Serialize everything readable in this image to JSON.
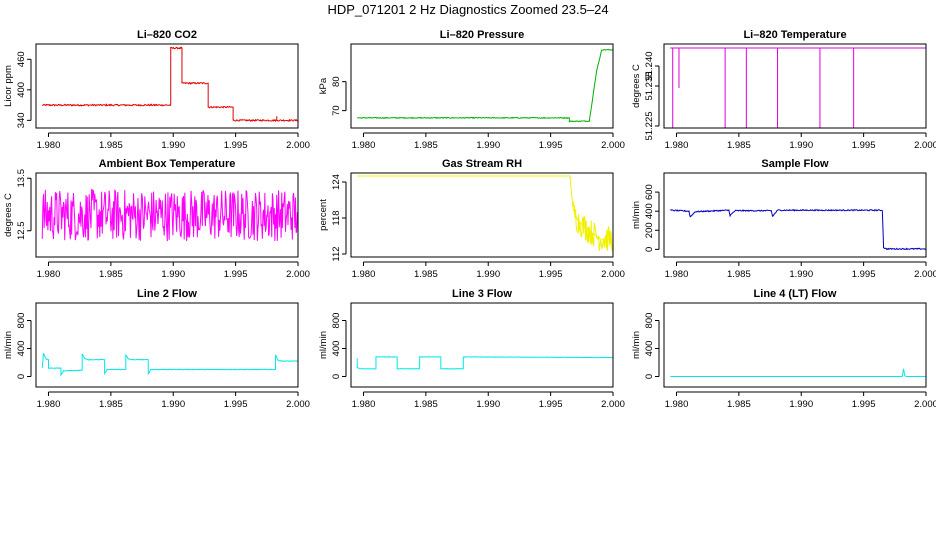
{
  "suptitle": "HDP_071201  2 Hz Diagnostics Zoomed 23.5–24",
  "chart_data": [
    {
      "type": "line",
      "title": "Li–820 CO2",
      "ylabel": "Licor ppm",
      "color": "#e00000",
      "xlim": [
        1.979,
        2.0
      ],
      "ylim": [
        325,
        490
      ],
      "xticks": [
        1.98,
        1.985,
        1.99,
        1.995,
        2.0
      ],
      "xtick_labels": [
        "1.980",
        "1.985",
        "1.990",
        "1.995",
        "2.000"
      ],
      "yticks": [
        340,
        400,
        460
      ],
      "ytick_labels": [
        "340",
        "400",
        "460"
      ],
      "series": [
        {
          "noise": 1.5,
          "x": [
            1.9795,
            1.9898,
            1.9898,
            1.9907,
            1.9907,
            1.9928,
            1.9928,
            1.9948,
            1.9948,
            1.9983,
            1.9983,
            1.9983,
            1.9983,
            2.0
          ],
          "y": [
            370,
            370,
            482,
            482,
            413,
            413,
            366,
            366,
            340,
            340,
            348,
            348,
            340,
            340
          ]
        }
      ]
    },
    {
      "type": "line",
      "title": "Li–820 Pressure",
      "ylabel": "kPa",
      "color": "#00b000",
      "xlim": [
        1.979,
        2.0
      ],
      "ylim": [
        64,
        93
      ],
      "xticks": [
        1.98,
        1.985,
        1.99,
        1.995,
        2.0
      ],
      "xtick_labels": [
        "1.980",
        "1.985",
        "1.990",
        "1.995",
        "2.000"
      ],
      "yticks": [
        70,
        80
      ],
      "ytick_labels": [
        "70",
        "80"
      ],
      "series": [
        {
          "noise": 0.15,
          "x": [
            1.9795,
            1.9965,
            1.9965,
            1.9981,
            1.9987,
            1.9991,
            2.0
          ],
          "y": [
            67.5,
            67.5,
            66.3,
            66.4,
            84,
            91,
            91
          ]
        }
      ]
    },
    {
      "type": "line",
      "title": "Li–820 Temperature",
      "ylabel": "degrees C",
      "color": "#e000e0",
      "xlim": [
        1.979,
        2.0
      ],
      "ylim": [
        51.2245,
        51.2455
      ],
      "xticks": [
        1.98,
        1.985,
        1.99,
        1.995,
        2.0
      ],
      "xtick_labels": [
        "1.980",
        "1.985",
        "1.990",
        "1.995",
        "2.000"
      ],
      "yticks": [
        51.225,
        51.235,
        51.24
      ],
      "ytick_labels": [
        "51.225",
        "51.235",
        "51.240"
      ],
      "series": [
        {
          "noise": 0,
          "x": [
            1.9795,
            1.9797,
            1.9797,
            1.9797,
            1.9797,
            1.9802,
            1.9802,
            1.9802,
            1.9802,
            1.9839,
            1.9839,
            1.9839,
            1.9839,
            1.9856,
            1.9856,
            1.9856,
            1.9856,
            1.9881,
            1.9881,
            1.9881,
            1.9881,
            1.9915,
            1.9915,
            1.9915,
            1.9915,
            1.9942,
            1.9942,
            1.9942,
            1.9942,
            2.0
          ],
          "y": [
            51.2445,
            51.2445,
            51.2245,
            51.2245,
            51.2445,
            51.2445,
            51.2345,
            51.2345,
            51.2445,
            51.2445,
            51.2245,
            51.2245,
            51.2445,
            51.2445,
            51.2245,
            51.2245,
            51.2445,
            51.2445,
            51.2245,
            51.2245,
            51.2445,
            51.2445,
            51.2245,
            51.2245,
            51.2445,
            51.2445,
            51.2245,
            51.2245,
            51.2445,
            51.2445
          ]
        }
      ]
    },
    {
      "type": "line",
      "title": "Ambient Box Temperature",
      "ylabel": "degrees C",
      "color": "#ff00ff",
      "xlim": [
        1.979,
        2.0
      ],
      "ylim": [
        12.0,
        13.6
      ],
      "xticks": [
        1.98,
        1.985,
        1.99,
        1.995,
        2.0
      ],
      "xtick_labels": [
        "1.980",
        "1.985",
        "1.990",
        "1.995",
        "2.000"
      ],
      "yticks": [
        12.5,
        13.5
      ],
      "ytick_labels": [
        "12.5",
        "13.5"
      ],
      "series": [
        {
          "noise": 0.5,
          "x": [
            1.9795,
            2.0
          ],
          "y": [
            12.8,
            12.8
          ]
        }
      ]
    },
    {
      "type": "line",
      "title": "Gas Stream RH",
      "ylabel": "percent",
      "color": "#f0f000",
      "xlim": [
        1.979,
        2.0
      ],
      "ylim": [
        111.5,
        125.5
      ],
      "xticks": [
        1.98,
        1.985,
        1.99,
        1.995,
        2.0
      ],
      "xtick_labels": [
        "1.980",
        "1.985",
        "1.990",
        "1.995",
        "2.000"
      ],
      "yticks": [
        112,
        118,
        124
      ],
      "ytick_labels": [
        "112",
        "118",
        "124"
      ],
      "series": [
        {
          "noise": 0,
          "x": [
            1.9795,
            1.99655,
            1.9968,
            1.9972,
            1.998,
            1.999,
            2.0
          ],
          "y": [
            125.0,
            125.0,
            119.5,
            117.5,
            116.0,
            114.5,
            114.5
          ]
        },
        {
          "noise": 2.2,
          "x": [
            1.9968,
            1.9972,
            1.998,
            1.999,
            2.0
          ],
          "y": [
            119.0,
            117.5,
            116.0,
            114.5,
            114.5
          ]
        }
      ]
    },
    {
      "type": "line",
      "title": "Sample Flow",
      "ylabel": "ml/min",
      "color": "#0000c0",
      "xlim": [
        1.979,
        2.0
      ],
      "ylim": [
        -80,
        800
      ],
      "xticks": [
        1.98,
        1.985,
        1.99,
        1.995,
        2.0
      ],
      "xtick_labels": [
        "1.980",
        "1.985",
        "1.990",
        "1.995",
        "2.000"
      ],
      "yticks": [
        0,
        200,
        400,
        600
      ],
      "ytick_labels": [
        "0",
        "200",
        "400",
        "600"
      ],
      "series": [
        {
          "noise": 6,
          "x": [
            1.9795,
            1.981,
            1.9811,
            1.9815,
            1.9842,
            1.9843,
            1.9847,
            1.9876,
            1.9877,
            1.9881,
            1.9965,
            1.9966,
            1.9968,
            2.0
          ],
          "y": [
            410,
            400,
            340,
            395,
            410,
            355,
            405,
            405,
            345,
            410,
            410,
            20,
            5,
            5
          ]
        }
      ]
    },
    {
      "type": "line",
      "title": "Line 2 Flow",
      "ylabel": "ml/min",
      "color": "#00e8e8",
      "xlim": [
        1.979,
        2.0
      ],
      "ylim": [
        -150,
        1050
      ],
      "xticks": [
        1.98,
        1.985,
        1.99,
        1.995,
        2.0
      ],
      "xtick_labels": [
        "1.980",
        "1.985",
        "1.990",
        "1.995",
        "2.000"
      ],
      "yticks": [
        0,
        400,
        800
      ],
      "ytick_labels": [
        "0",
        "400",
        "800"
      ],
      "series": [
        {
          "noise": 4,
          "x": [
            1.9795,
            1.9796,
            1.9798,
            1.98,
            1.98,
            1.981,
            1.981,
            1.9812,
            1.9827,
            1.9827,
            1.9829,
            1.9832,
            1.9845,
            1.9845,
            1.9847,
            1.9862,
            1.9862,
            1.9864,
            1.9867,
            1.988,
            1.988,
            1.9882,
            1.9982,
            1.9982,
            1.9984,
            1.9988,
            2.0
          ],
          "y": [
            120,
            330,
            250,
            240,
            120,
            120,
            20,
            80,
            90,
            320,
            260,
            240,
            240,
            40,
            100,
            100,
            310,
            250,
            240,
            240,
            40,
            100,
            100,
            310,
            230,
            220,
            220
          ]
        }
      ]
    },
    {
      "type": "line",
      "title": "Line 3 Flow",
      "ylabel": "ml/min",
      "color": "#00e8e8",
      "xlim": [
        1.979,
        2.0
      ],
      "ylim": [
        -150,
        1050
      ],
      "xticks": [
        1.98,
        1.985,
        1.99,
        1.995,
        2.0
      ],
      "xtick_labels": [
        "1.980",
        "1.985",
        "1.990",
        "1.995",
        "2.000"
      ],
      "yticks": [
        0,
        400,
        800
      ],
      "ytick_labels": [
        "0",
        "400",
        "800"
      ],
      "series": [
        {
          "noise": 3,
          "x": [
            1.9795,
            1.9795,
            1.9797,
            1.981,
            1.981,
            1.9827,
            1.9827,
            1.9845,
            1.9845,
            1.9862,
            1.9862,
            1.988,
            1.988,
            2.0
          ],
          "y": [
            260,
            130,
            110,
            110,
            280,
            280,
            110,
            110,
            280,
            280,
            110,
            110,
            280,
            270
          ]
        }
      ]
    },
    {
      "type": "line",
      "title": "Line 4 (LT) Flow",
      "ylabel": "ml/min",
      "color": "#00e8e8",
      "xlim": [
        1.979,
        2.0
      ],
      "ylim": [
        -150,
        1050
      ],
      "xticks": [
        1.98,
        1.985,
        1.99,
        1.995,
        2.0
      ],
      "xtick_labels": [
        "1.980",
        "1.985",
        "1.990",
        "1.995",
        "2.000"
      ],
      "yticks": [
        0,
        400,
        800
      ],
      "ytick_labels": [
        "0",
        "400",
        "800"
      ],
      "series": [
        {
          "noise": 0,
          "x": [
            1.9795,
            1.9981,
            1.9982,
            1.9983,
            1.9984,
            2.0
          ],
          "y": [
            0,
            0,
            110,
            10,
            0,
            0
          ]
        }
      ]
    }
  ]
}
